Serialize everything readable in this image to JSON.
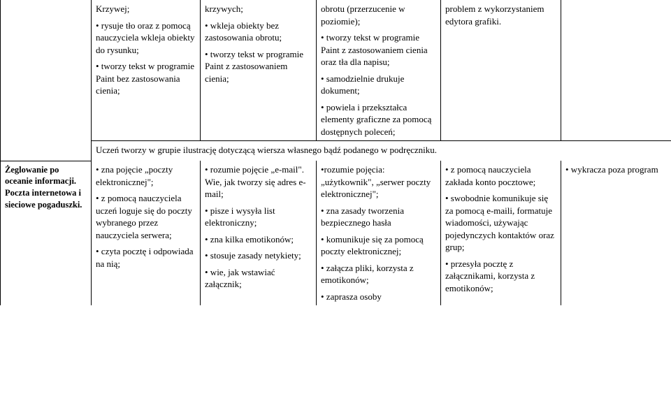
{
  "columns": {
    "widths": [
      130,
      156,
      166,
      178,
      172,
      158
    ]
  },
  "row1": {
    "c1": "",
    "c2": "Krzywej;\n\n• rysuje tło oraz z pomocą nauczyciela wkleja obiekty do rysunku;\n\n• tworzy tekst w programie Paint bez zastosowania cienia;",
    "c3": "krzywych;\n\n• wkleja obiekty bez zastosowania obrotu;\n\n• tworzy tekst w programie Paint z zastosowaniem cienia;",
    "c4": "obrotu (przerzucenie w poziomie);\n\n• tworzy tekst w programie Paint z zastosowaniem cienia oraz tła dla napisu;\n\n• samodzielnie drukuje dokument;\n\n• powiela i przekształca elementy graficzne za pomocą dostępnych poleceń;",
    "c5": "problem z wykorzystaniem edytora grafiki.",
    "c6": ""
  },
  "midline": "Uczeń tworzy w grupie ilustrację dotyczącą wiersza własnego bądź podanego w podręczniku.",
  "row2": {
    "c1": "Żeglowanie po oceanie informacji. Poczta internetowa i sieciowe pogaduszki.",
    "c2": "• zna pojęcie „poczty elektronicznej\";\n\n• z pomocą nauczyciela uczeń loguje się do poczty wybranego przez nauczyciela serwera;\n\n• czyta pocztę i odpowiada na nią;",
    "c3": "• rozumie pojęcie „e-mail\". Wie, jak tworzy się adres e-mail;\n\n• pisze i wysyła list elektroniczny;\n\n• zna kilka emotikonów;\n\n• stosuje zasady netykiety;\n\n• wie, jak wstawiać załącznik;",
    "c4": "•rozumie pojęcia: „użytkownik\", „serwer poczty elektronicznej\";\n\n• zna zasady tworzenia bezpiecznego hasła\n\n• komunikuje się za pomocą poczty elektronicznej;\n\n• załącza pliki, korzysta z emotikonów;\n\n• zaprasza osoby",
    "c5": "• z pomocą nauczyciela zakłada konto pocztowe;\n\n• swobodnie komunikuje się za pomocą e-maili, formatuje wiadomości, używając pojedynczych kontaktów oraz grup;\n\n• przesyła pocztę z załącznikami, korzysta z emotikonów;",
    "c6": "• wykracza poza program"
  }
}
